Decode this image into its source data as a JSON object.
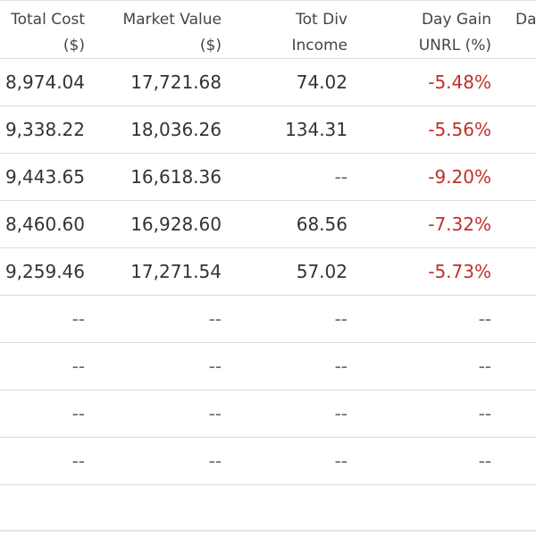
{
  "headers": [
    {
      "line1": "Total Cost",
      "line2": "($)"
    },
    {
      "line1": "Market Value",
      "line2": "($)"
    },
    {
      "line1": "Tot Div",
      "line2": "Income"
    },
    {
      "line1": "Day Gain",
      "line2": "UNRL (%)"
    },
    {
      "line1": "Da",
      "line2": ""
    }
  ],
  "rows": [
    {
      "total_cost": "8,974.04",
      "market_value": "17,721.68",
      "tot_div": "74.02",
      "day_gain": "-5.48%"
    },
    {
      "total_cost": "9,338.22",
      "market_value": "18,036.26",
      "tot_div": "134.31",
      "day_gain": "-5.56%"
    },
    {
      "total_cost": "9,443.65",
      "market_value": "16,618.36",
      "tot_div": "--",
      "day_gain": "-9.20%"
    },
    {
      "total_cost": "8,460.60",
      "market_value": "16,928.60",
      "tot_div": "68.56",
      "day_gain": "-7.32%"
    },
    {
      "total_cost": "9,259.46",
      "market_value": "17,271.54",
      "tot_div": "57.02",
      "day_gain": "-5.73%"
    },
    {
      "total_cost": "--",
      "market_value": "--",
      "tot_div": "--",
      "day_gain": "--"
    },
    {
      "total_cost": "--",
      "market_value": "--",
      "tot_div": "--",
      "day_gain": "--"
    },
    {
      "total_cost": "--",
      "market_value": "--",
      "tot_div": "--",
      "day_gain": "--"
    },
    {
      "total_cost": "--",
      "market_value": "--",
      "tot_div": "--",
      "day_gain": "--"
    }
  ],
  "colors": {
    "negative": "#c0302a",
    "text": "#333333",
    "border": "#dcdcdc"
  }
}
